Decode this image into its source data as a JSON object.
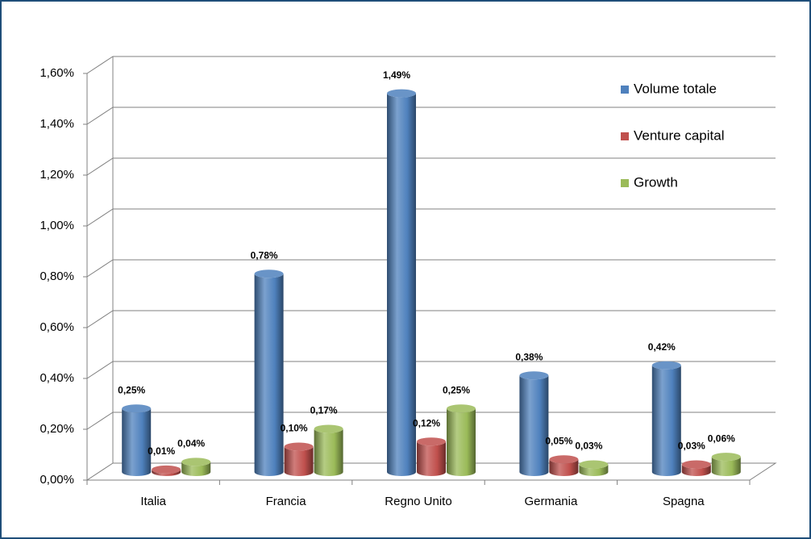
{
  "chart_data": {
    "type": "bar3d",
    "categories": [
      "Italia",
      "Francia",
      "Regno Unito",
      "Germania",
      "Spagna"
    ],
    "series": [
      {
        "name": "Volume totale",
        "color": "#4f81bd",
        "values": [
          0.25,
          0.78,
          1.49,
          0.38,
          0.42
        ],
        "value_labels": [
          "0,25%",
          "0,78%",
          "1,49%",
          "0,38%",
          "0,42%"
        ]
      },
      {
        "name": "Venture capital",
        "color": "#c0504d",
        "values": [
          0.01,
          0.1,
          0.12,
          0.05,
          0.03
        ],
        "value_labels": [
          "0,01%",
          "0,10%",
          "0,12%",
          "0,05%",
          "0,03%"
        ]
      },
      {
        "name": "Growth",
        "color": "#9bbb59",
        "values": [
          0.04,
          0.17,
          0.25,
          0.03,
          0.06
        ],
        "value_labels": [
          "0,04%",
          "0,17%",
          "0,25%",
          "0,03%",
          "0,06%"
        ]
      }
    ],
    "ylim": [
      0,
      1.6
    ],
    "yticks": [
      {
        "value": 0,
        "label": "0,00%"
      },
      {
        "value": 0.2,
        "label": "0,20%"
      },
      {
        "value": 0.4,
        "label": "0,40%"
      },
      {
        "value": 0.6,
        "label": "0,60%"
      },
      {
        "value": 0.8,
        "label": "0,80%"
      },
      {
        "value": 1.0,
        "label": "1,00%"
      },
      {
        "value": 1.2,
        "label": "1,20%"
      },
      {
        "value": 1.4,
        "label": "1,40%"
      },
      {
        "value": 1.6,
        "label": "1,60%"
      }
    ],
    "grid": true,
    "legend": "right"
  }
}
